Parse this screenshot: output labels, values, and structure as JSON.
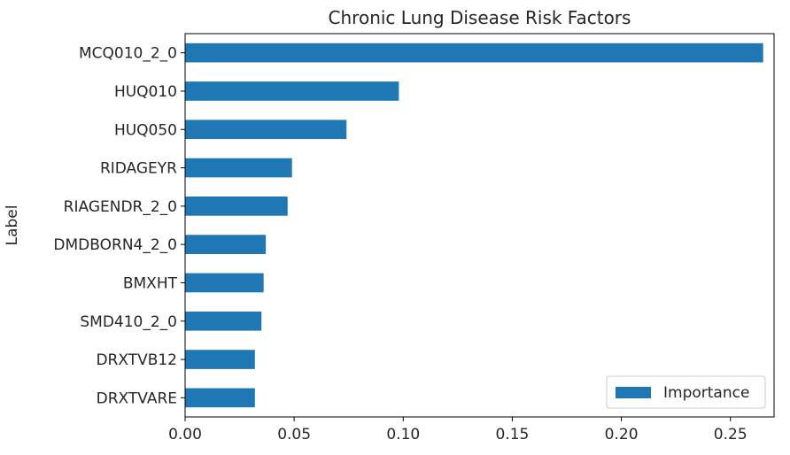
{
  "chart_data": {
    "type": "bar",
    "orientation": "horizontal",
    "title": "Chronic Lung Disease Risk Factors",
    "xlabel": "",
    "ylabel": "Label",
    "categories": [
      "MCQ010_2_0",
      "HUQ010",
      "HUQ050",
      "RIDAGEYR",
      "RIAGENDR_2_0",
      "DMDBORN4_2_0",
      "BMXHT",
      "SMD410_2_0",
      "DRXTVB12",
      "DRXTVARE"
    ],
    "series": [
      {
        "name": "Importance",
        "color": "#1f77b4",
        "values": [
          0.265,
          0.098,
          0.074,
          0.049,
          0.047,
          0.037,
          0.036,
          0.035,
          0.032,
          0.032
        ]
      }
    ],
    "xlim": [
      0,
      0.27
    ],
    "xticks": [
      0.0,
      0.05,
      0.1,
      0.15,
      0.2,
      0.25
    ],
    "xtick_labels": [
      "0.00",
      "0.05",
      "0.10",
      "0.15",
      "0.20",
      "0.25"
    ],
    "grid": false,
    "legend_position": "lower-right"
  }
}
